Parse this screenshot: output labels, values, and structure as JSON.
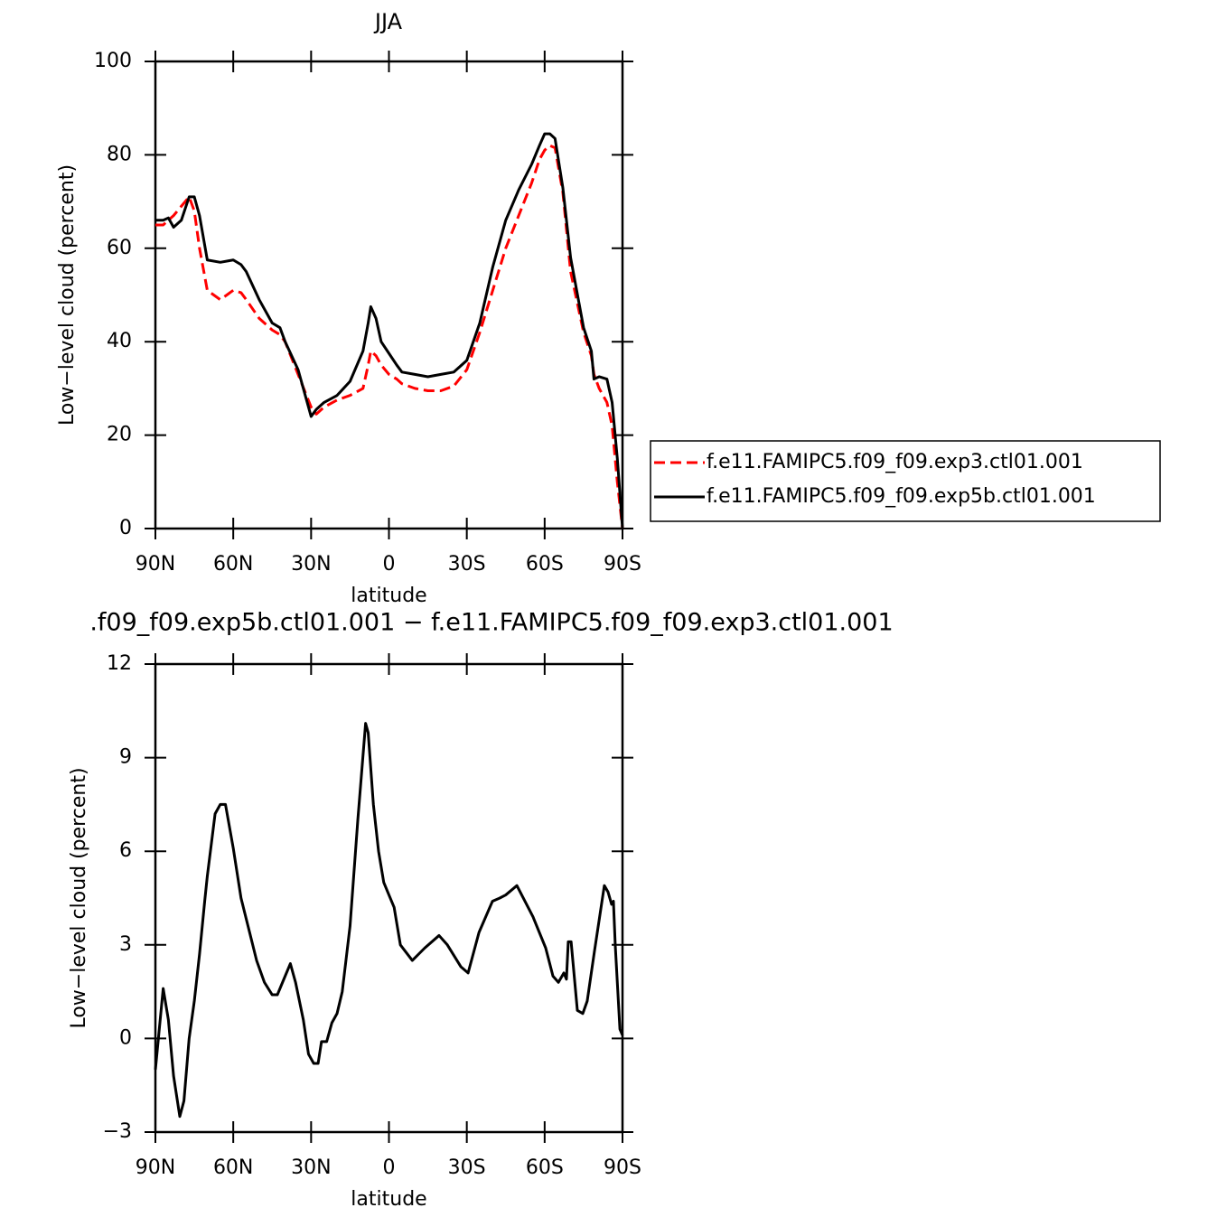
{
  "chart_data": [
    {
      "type": "line",
      "title": "JJA",
      "xlabel": "latitude",
      "ylabel": "Low−level cloud (percent)",
      "x": [
        90,
        87,
        85,
        83,
        80,
        77,
        75,
        73,
        70,
        65,
        60,
        57,
        55,
        50,
        45,
        42,
        40,
        35,
        30,
        28,
        25,
        20,
        15,
        10,
        8,
        7,
        5,
        3,
        0,
        -3,
        -5,
        -10,
        -15,
        -20,
        -25,
        -30,
        -35,
        -40,
        -45,
        -50,
        -55,
        -58,
        -60,
        -62,
        -64,
        -67,
        -70,
        -75,
        -78,
        -79,
        -81,
        -84,
        -86,
        -88,
        -90
      ],
      "series": [
        {
          "name": "f.e11.FAMIPC5.f09_f09.exp3.ctl01.001",
          "color": "#ff0000",
          "dashed": true,
          "values": [
            65,
            65,
            66,
            67,
            69,
            71,
            68,
            60,
            51,
            49,
            51,
            50.5,
            49,
            45,
            42.5,
            41.5,
            40,
            33,
            26,
            24.5,
            26,
            27.5,
            28.5,
            30,
            35,
            38,
            37,
            35,
            33,
            32,
            31,
            30,
            29.5,
            29.5,
            30.5,
            34,
            42,
            51,
            60,
            67,
            74,
            79,
            81,
            82,
            81.5,
            72,
            55,
            42,
            37,
            33,
            30,
            27,
            22,
            10,
            0
          ]
        },
        {
          "name": "f.e11.FAMIPC5.f09_f09.exp5b.ctl01.001",
          "color": "#000000",
          "dashed": false,
          "values": [
            66,
            66,
            66.5,
            64.5,
            66,
            71,
            71,
            67,
            57.5,
            57,
            57.5,
            56.5,
            55,
            49,
            44,
            43,
            40,
            34,
            24,
            25.5,
            27,
            28.5,
            31.5,
            38,
            44,
            47.5,
            45,
            40,
            37.5,
            35,
            33.5,
            33,
            32.5,
            33,
            33.5,
            36,
            44,
            56,
            66,
            72.5,
            78,
            82,
            84.5,
            84.5,
            83.5,
            73,
            58,
            43,
            38,
            32,
            32.5,
            32,
            27,
            15,
            0
          ]
        }
      ],
      "xlim": [
        90,
        -90
      ],
      "xticks": [
        {
          "value": 90,
          "label": "90N"
        },
        {
          "value": 60,
          "label": "60N"
        },
        {
          "value": 30,
          "label": "30N"
        },
        0,
        {
          "value": -30,
          "label": "30S"
        },
        {
          "value": -60,
          "label": "60S"
        },
        {
          "value": -90,
          "label": "90S"
        }
      ],
      "ylim": [
        0,
        100
      ],
      "yticks": [
        0,
        20,
        40,
        60,
        80,
        100
      ],
      "legend": "right"
    },
    {
      "type": "line",
      "title": ".f09_f09.exp5b.ctl01.001 − f.e11.FAMIPC5.f09_f09.exp3.ctl01.001",
      "xlabel": "latitude",
      "ylabel": "Low−level cloud (percent)",
      "x": [
        90,
        87,
        85,
        83,
        80.6,
        79,
        77,
        75,
        73,
        71,
        70,
        67,
        65,
        63,
        60,
        57,
        54,
        51,
        48,
        45,
        43,
        41,
        38,
        36,
        33,
        31,
        29,
        27.3,
        26,
        24,
        22,
        20,
        18,
        15,
        12,
        9,
        8,
        6,
        4,
        2,
        0,
        -2,
        -4.4,
        -9,
        -13.8,
        -19.3,
        -22.5,
        -27.7,
        -30.5,
        -34.7,
        -39.9,
        -42.7,
        -45,
        -49.3,
        -55.5,
        -60.4,
        -63.2,
        -65.3,
        -67.4,
        -68.4,
        -69.1,
        -70.2,
        -72.6,
        -74.7,
        -76.4,
        -79.2,
        -83,
        -84.4,
        -85.8,
        -86.5,
        -87.2,
        -89,
        -90
      ],
      "values": [
        -1,
        1.6,
        0.6,
        -1.2,
        -2.5,
        -2,
        0,
        1.2,
        2.7,
        4.4,
        5.2,
        7.2,
        7.5,
        7.5,
        6.1,
        4.5,
        3.5,
        2.5,
        1.8,
        1.4,
        1.4,
        1.8,
        2.4,
        1.8,
        0.6,
        -0.5,
        -0.8,
        -0.8,
        -0.1,
        -0.1,
        0.5,
        0.8,
        1.5,
        3.6,
        7,
        10.1,
        9.8,
        7.5,
        6,
        5,
        4.6,
        4.2,
        3,
        2.5,
        2.9,
        3.3,
        3,
        2.3,
        2.1,
        3.4,
        4.4,
        4.5,
        4.6,
        4.9,
        3.9,
        2.9,
        2,
        1.8,
        2.1,
        1.9,
        3.1,
        3.1,
        0.9,
        0.8,
        1.2,
        2.8,
        4.9,
        4.7,
        4.3,
        4.4,
        3,
        0.3,
        0.1
      ],
      "color": "#000000",
      "xlim": [
        90,
        -90
      ],
      "xticks": [
        {
          "value": 90,
          "label": "90N"
        },
        {
          "value": 60,
          "label": "60N"
        },
        {
          "value": 30,
          "label": "30N"
        },
        0,
        {
          "value": -30,
          "label": "30S"
        },
        {
          "value": -60,
          "label": "60S"
        },
        {
          "value": -90,
          "label": "90S"
        }
      ],
      "ylim": [
        -3,
        12
      ],
      "yticks": [
        {
          "value": -3,
          "label": "−3"
        },
        0,
        3,
        6,
        9,
        12
      ]
    }
  ]
}
